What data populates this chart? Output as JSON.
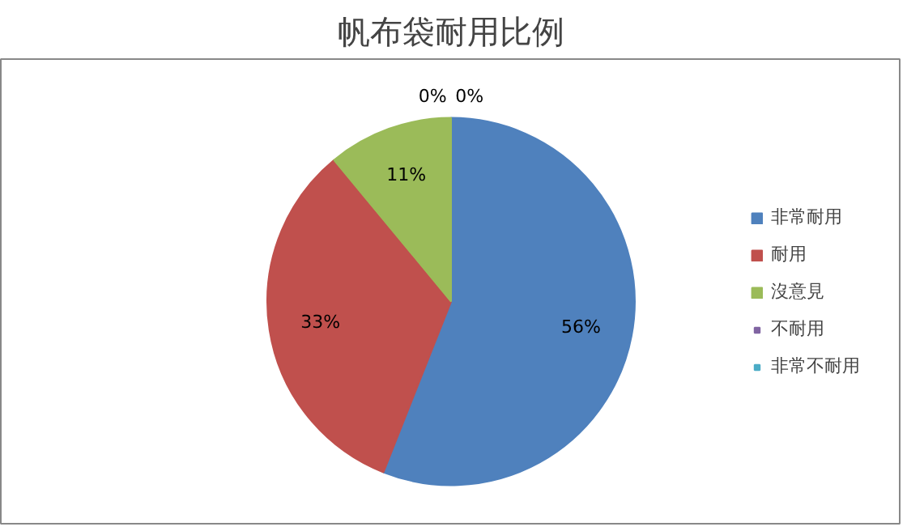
{
  "chart_data": {
    "type": "pie",
    "title": "帆布袋耐用比例",
    "categories": [
      "非常耐用",
      "耐用",
      "沒意見",
      "不耐用",
      "非常不耐用"
    ],
    "values": [
      56,
      33,
      11,
      0,
      0
    ],
    "colors": [
      "#4f81bd",
      "#c0504d",
      "#9bbb59",
      "#8064a2",
      "#4bacc6"
    ],
    "value_labels": [
      "56%",
      "33%",
      "11%",
      "0%",
      "0%"
    ],
    "legend": "right"
  }
}
